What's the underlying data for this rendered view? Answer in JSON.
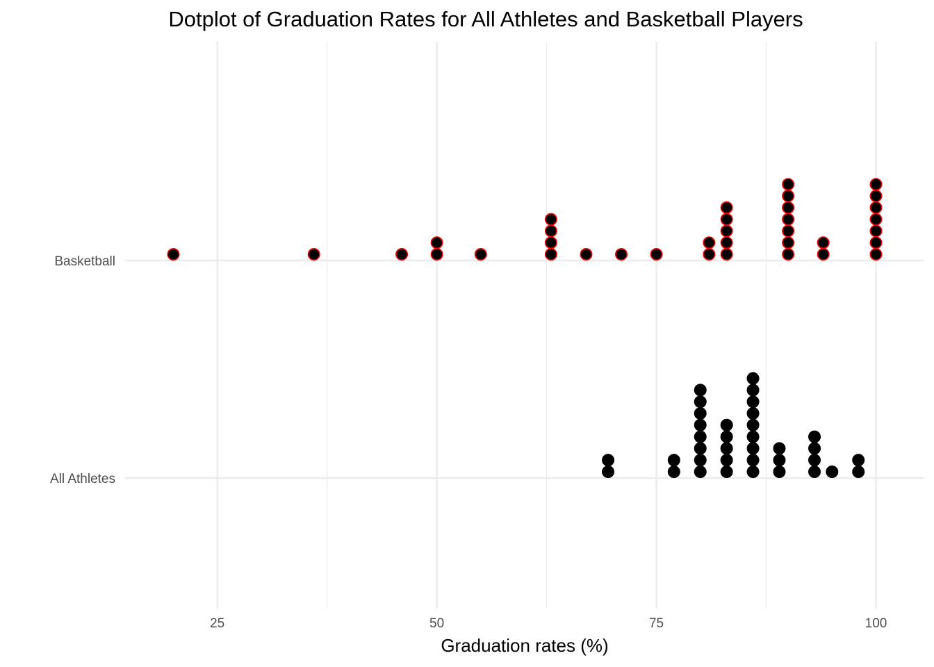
{
  "chart_data": {
    "type": "dotplot",
    "title": "Dotplot of Graduation Rates for All Athletes and Basketball Players",
    "x_label": "Graduation rates (%)",
    "xlim": [
      14.5,
      105.5
    ],
    "xticks": [
      25,
      50,
      75,
      100
    ],
    "minor_xticks": [
      37.5,
      62.5,
      87.5
    ],
    "grid": true,
    "series": [
      {
        "name": "All Athletes",
        "color": "#000000",
        "edgecolor": "#000000",
        "values": [
          69.5,
          69.5,
          77,
          77,
          80,
          80,
          80,
          80,
          80,
          80,
          80,
          80,
          83,
          83,
          83,
          83,
          83,
          86,
          86,
          86,
          86,
          86,
          86,
          86,
          86,
          86,
          89,
          89,
          89,
          93,
          93,
          93,
          93,
          95,
          98,
          98
        ]
      },
      {
        "name": "Basketball",
        "color": "#000000",
        "edgecolor": "#ff0000",
        "values": [
          20,
          36,
          46,
          50,
          50,
          55,
          63,
          63,
          63,
          63,
          67,
          71,
          75,
          81,
          81,
          83,
          83,
          83,
          83,
          83,
          90,
          90,
          90,
          90,
          90,
          90,
          90,
          94,
          94,
          100,
          100,
          100,
          100,
          100,
          100,
          100
        ]
      }
    ]
  }
}
